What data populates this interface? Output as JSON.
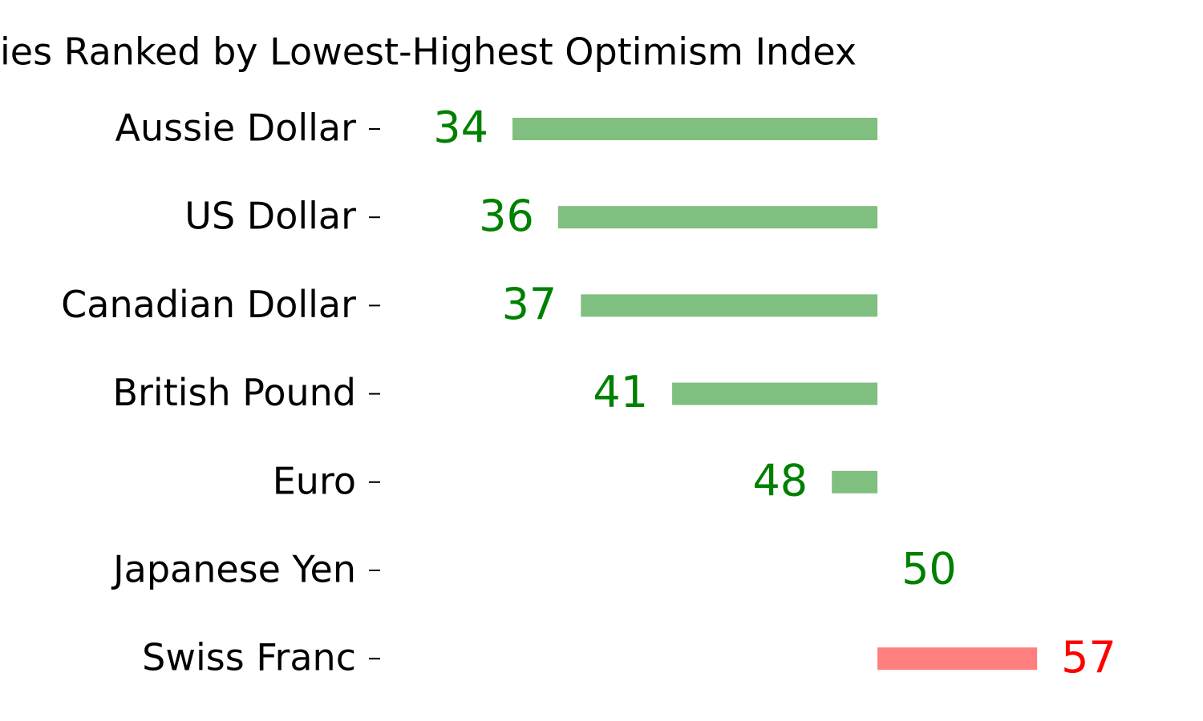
{
  "chart_data": {
    "type": "diverging_bar",
    "title": "ies Ranked by Lowest-Highest Optimism Index",
    "categories": [
      "Aussie Dollar",
      "US Dollar",
      "Canadian Dollar",
      "British Pound",
      "Euro",
      "Japanese Yen",
      "Swiss Franc"
    ],
    "values": [
      34,
      36,
      37,
      41,
      48,
      50,
      57
    ],
    "colors": [
      "green",
      "green",
      "green",
      "green",
      "green",
      "green",
      "red"
    ],
    "baseline": 50,
    "xlim": [
      30,
      60
    ]
  }
}
